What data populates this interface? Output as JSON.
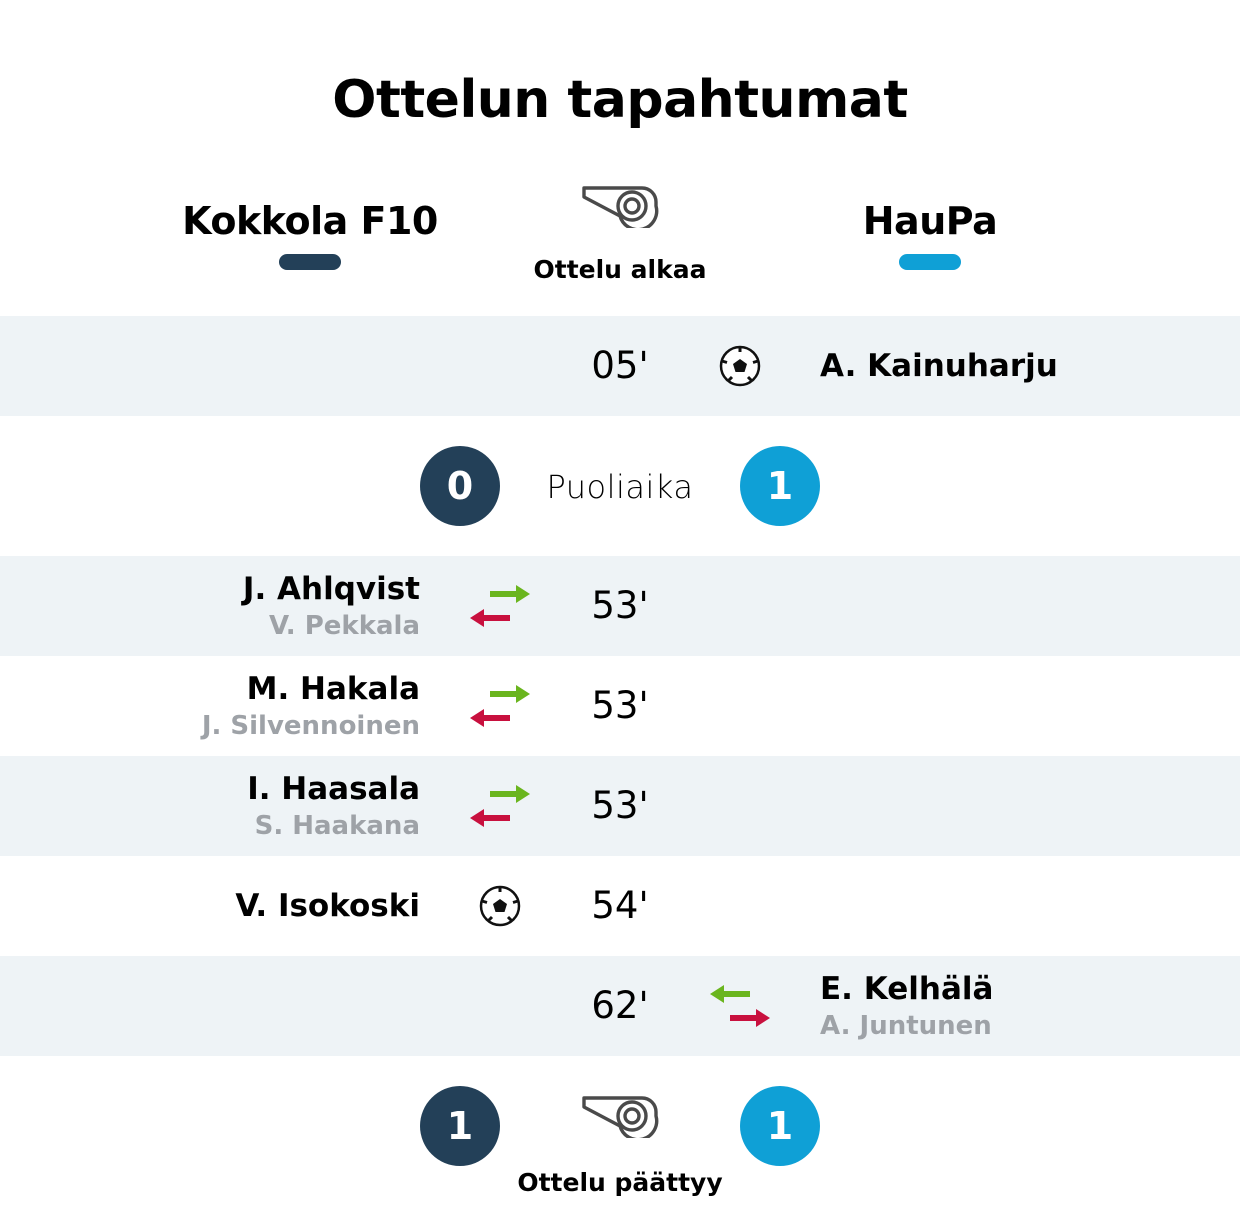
{
  "title": "Ottelun tapahtumat",
  "colors": {
    "home": "#234058",
    "away": "#0fa0d6",
    "sub_in": "#6ab51e",
    "sub_out": "#c8103e",
    "row_shade": "#eef3f6",
    "muted_text": "#9ea2a7"
  },
  "teams": {
    "home": {
      "name": "Kokkola F10"
    },
    "away": {
      "name": "HauPa"
    }
  },
  "match_start": {
    "label": "Ottelu alkaa",
    "icon": "whistle-icon"
  },
  "events": [
    {
      "minute": "05'",
      "type": "goal",
      "side": "away",
      "player": "A. Kainuharju",
      "icon": "soccer-ball-icon"
    },
    {
      "minute": "53'",
      "type": "substitution",
      "side": "home",
      "player_in": "J. Ahlqvist",
      "player_out": "V. Pekkala",
      "icon": "substitution-arrows-icon"
    },
    {
      "minute": "53'",
      "type": "substitution",
      "side": "home",
      "player_in": "M. Hakala",
      "player_out": "J. Silvennoinen",
      "icon": "substitution-arrows-icon"
    },
    {
      "minute": "53'",
      "type": "substitution",
      "side": "home",
      "player_in": "I. Haasala",
      "player_out": "S. Haakana",
      "icon": "substitution-arrows-icon"
    },
    {
      "minute": "54'",
      "type": "goal",
      "side": "home",
      "player": "V. Isokoski",
      "icon": "soccer-ball-icon"
    },
    {
      "minute": "62'",
      "type": "substitution",
      "side": "away",
      "player_in": "E. Kelhälä",
      "player_out": "A. Juntunen",
      "icon": "substitution-arrows-icon"
    }
  ],
  "halftime": {
    "label": "Puoliaika",
    "home_score": "0",
    "away_score": "1"
  },
  "match_end": {
    "label": "Ottelu päättyy",
    "home_score": "1",
    "away_score": "1",
    "icon": "whistle-icon"
  }
}
